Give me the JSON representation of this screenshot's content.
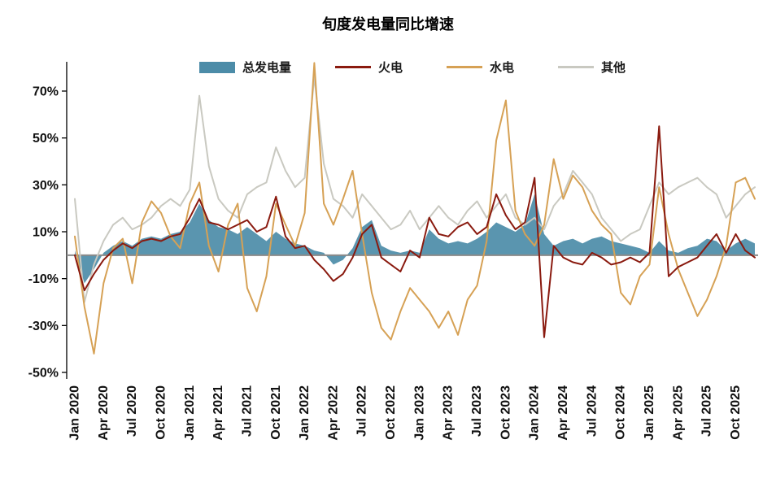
{
  "title": "旬度发电量同比增速",
  "colors": {
    "total_area": "#4C8CA8",
    "thermal": "#8A1A0F",
    "hydro": "#D6A155",
    "other": "#C9C9C1",
    "zero_line": "#8A8A8A",
    "axis": "#000000",
    "tick_text": "#111111"
  },
  "legend": [
    {
      "label": "总发电量",
      "type": "area",
      "color": "#4C8CA8"
    },
    {
      "label": "火电",
      "type": "line",
      "color": "#8A1A0F"
    },
    {
      "label": "水电",
      "type": "line",
      "color": "#D6A155"
    },
    {
      "label": "其他",
      "type": "line",
      "color": "#C9C9C1"
    }
  ],
  "chart_data": {
    "type": "line",
    "title": "旬度发电量同比增速",
    "xlabel": "",
    "ylabel": "",
    "ylim": [
      -55,
      85
    ],
    "grid": false,
    "legend_position": "top",
    "y_ticks": [
      -50,
      -30,
      -10,
      10,
      30,
      50,
      70
    ],
    "y_tick_suffix": "%",
    "x_tick_every": 3,
    "x_tick_labels": [
      "Jan 2020",
      "Apr 2020",
      "Jul 2020",
      "Oct 2020",
      "Jan 2021",
      "Apr 2021",
      "Jul 2021",
      "Oct 2021",
      "Jan 2022",
      "Apr 2022",
      "Jul 2022",
      "Oct 2022",
      "Jan 2023",
      "Apr 2023",
      "Jul 2023",
      "Oct 2023",
      "Jan 2024",
      "Apr 2024",
      "Jul 2024",
      "Oct 2024",
      "Jan 2025",
      "Apr 2025",
      "Jul 2025",
      "Oct 2025"
    ],
    "x_note": "monthly estimates Jan 2020 - Dec 2025, percent YoY",
    "series": [
      {
        "name": "总发电量",
        "type": "area",
        "color": "#4C8CA8",
        "values": [
          2,
          -12,
          -6,
          1,
          4,
          6,
          4,
          7,
          8,
          7,
          9,
          10,
          14,
          22,
          15,
          12,
          11,
          9,
          12,
          9,
          6,
          10,
          7,
          5,
          4,
          2,
          1,
          -4,
          -2,
          3,
          12,
          15,
          4,
          2,
          1,
          2,
          1,
          11,
          7,
          5,
          6,
          5,
          7,
          10,
          14,
          12,
          10,
          13,
          26,
          9,
          4,
          6,
          7,
          5,
          7,
          8,
          6,
          5,
          4,
          3,
          1,
          6,
          2,
          1,
          3,
          4,
          7,
          6,
          2,
          5,
          7,
          5
        ]
      },
      {
        "name": "火电",
        "type": "line",
        "color": "#8A1A0F",
        "values": [
          0,
          -15,
          -8,
          -2,
          2,
          5,
          3,
          6,
          7,
          6,
          8,
          9,
          16,
          24,
          14,
          13,
          11,
          13,
          15,
          10,
          12,
          25,
          8,
          3,
          4,
          -2,
          -6,
          -11,
          -8,
          -1,
          9,
          13,
          -1,
          -4,
          -7,
          2,
          -1,
          16,
          9,
          8,
          12,
          14,
          9,
          12,
          26,
          17,
          11,
          14,
          33,
          -35,
          4,
          -1,
          -3,
          -4,
          1,
          -1,
          -4,
          -3,
          -1,
          -3,
          1,
          55,
          -9,
          -5,
          -3,
          -1,
          4,
          9,
          1,
          9,
          2,
          -1
        ]
      },
      {
        "name": "水电",
        "type": "line",
        "color": "#D6A155",
        "values": [
          8,
          -22,
          -42,
          -12,
          3,
          7,
          -12,
          14,
          23,
          18,
          8,
          3,
          22,
          31,
          4,
          -7,
          13,
          22,
          -14,
          -24,
          -9,
          22,
          13,
          4,
          18,
          82,
          22,
          13,
          24,
          36,
          9,
          -16,
          -31,
          -36,
          -24,
          -14,
          -19,
          -24,
          -31,
          -24,
          -34,
          -19,
          -13,
          6,
          49,
          66,
          19,
          9,
          4,
          13,
          41,
          24,
          34,
          29,
          19,
          13,
          9,
          -16,
          -21,
          -9,
          -4,
          29,
          9,
          -6,
          -16,
          -26,
          -19,
          -9,
          4,
          31,
          33,
          24
        ]
      },
      {
        "name": "其他",
        "type": "line",
        "color": "#C9C9C1",
        "values": [
          24,
          -20,
          -4,
          6,
          13,
          16,
          11,
          13,
          16,
          21,
          24,
          21,
          28,
          68,
          38,
          24,
          19,
          16,
          26,
          29,
          31,
          46,
          36,
          29,
          33,
          76,
          39,
          24,
          21,
          16,
          26,
          21,
          16,
          11,
          13,
          19,
          11,
          16,
          21,
          16,
          13,
          19,
          23,
          16,
          21,
          26,
          16,
          13,
          16,
          11,
          21,
          26,
          36,
          31,
          26,
          16,
          11,
          6,
          9,
          11,
          21,
          31,
          26,
          29,
          31,
          33,
          29,
          26,
          16,
          21,
          26,
          29
        ]
      }
    ]
  }
}
